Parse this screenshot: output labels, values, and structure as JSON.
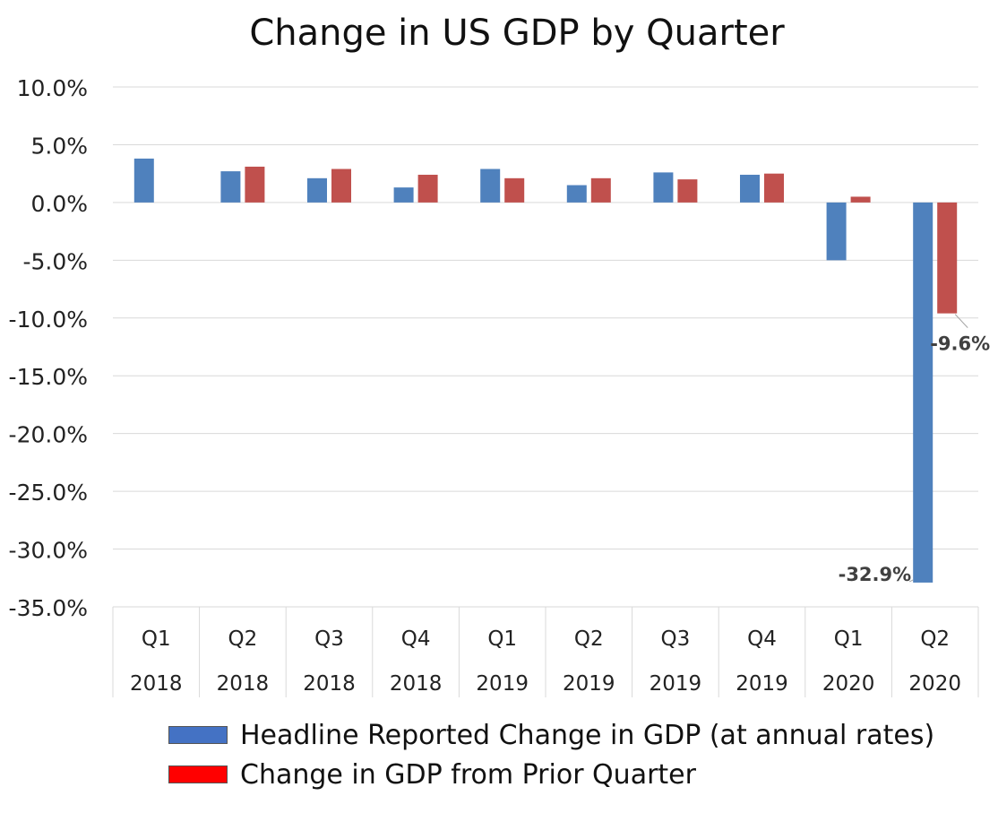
{
  "chart_data": {
    "type": "bar",
    "title": "Change in US GDP by Quarter",
    "categories": [
      [
        "Q1",
        "2018"
      ],
      [
        "Q2",
        "2018"
      ],
      [
        "Q3",
        "2018"
      ],
      [
        "Q4",
        "2018"
      ],
      [
        "Q1",
        "2019"
      ],
      [
        "Q2",
        "2019"
      ],
      [
        "Q3",
        "2019"
      ],
      [
        "Q4",
        "2019"
      ],
      [
        "Q1",
        "2020"
      ],
      [
        "Q2",
        "2020"
      ]
    ],
    "series": [
      {
        "name": "Headline Reported Change in GDP (at annual rates)",
        "color": "#4f81bd",
        "legend_color": "#4472c4",
        "values": [
          3.8,
          2.7,
          2.1,
          1.3,
          2.9,
          1.5,
          2.6,
          2.4,
          -5.0,
          -32.9
        ]
      },
      {
        "name": "Change in GDP from Prior Quarter",
        "color": "#c0504d",
        "legend_color": "#ff0000",
        "values": [
          null,
          3.1,
          2.9,
          2.4,
          2.1,
          2.1,
          2.0,
          2.5,
          0.5,
          -9.6
        ]
      }
    ],
    "data_labels": [
      {
        "series": 0,
        "index": 9,
        "text": "-32.9%"
      },
      {
        "series": 1,
        "index": 9,
        "text": "-9.6%"
      }
    ],
    "ylim": [
      -35,
      10
    ],
    "yticks": [
      "10.0%",
      "5.0%",
      "0.0%",
      "-5.0%",
      "-10.0%",
      "-15.0%",
      "-20.0%",
      "-25.0%",
      "-30.0%",
      "-35.0%"
    ],
    "ytick_values": [
      10,
      5,
      0,
      -5,
      -10,
      -15,
      -20,
      -25,
      -30,
      -35
    ],
    "grid": true,
    "legend_position": "bottom"
  }
}
